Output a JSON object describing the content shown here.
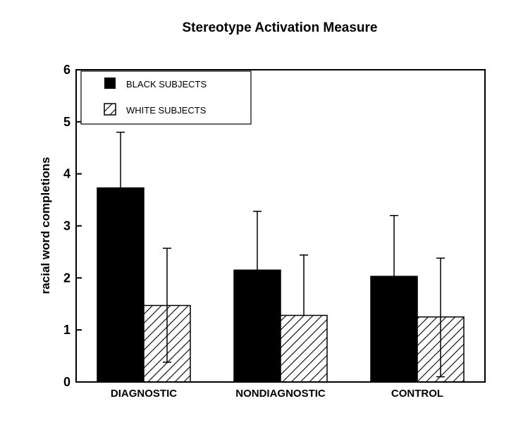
{
  "chart_data": {
    "type": "bar",
    "title": "Stereotype Activation Measure",
    "xlabel": "",
    "ylabel": "racial word completions",
    "ylim": [
      0,
      6
    ],
    "yticks": [
      0,
      1,
      2,
      3,
      4,
      5,
      6
    ],
    "categories": [
      "DIAGNOSTIC",
      "NONDIAGNOSTIC",
      "CONTROL"
    ],
    "series": [
      {
        "name": "BLACK SUBJECTS",
        "values": [
          3.73,
          2.15,
          2.03
        ],
        "error_upper": [
          4.8,
          3.28,
          3.2
        ],
        "fill": "solid",
        "color": "#000000"
      },
      {
        "name": "WHITE SUBJECTS",
        "values": [
          1.47,
          1.28,
          1.25
        ],
        "error_upper": [
          2.57,
          2.44,
          2.38
        ],
        "error_lower": [
          0.38,
          null,
          0.1
        ],
        "fill": "hatched",
        "color": "#000000"
      }
    ],
    "legend_position": "top-left",
    "grid": false
  }
}
